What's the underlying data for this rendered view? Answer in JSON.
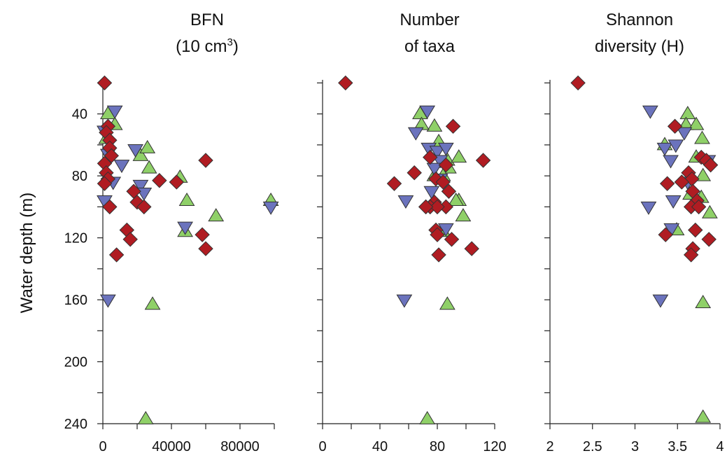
{
  "chart_data": {
    "type": "scatter",
    "ylabel": "Water depth (m)",
    "ylim": [
      18,
      240
    ],
    "y_inverted": true,
    "yticks": [
      40,
      80,
      120,
      160,
      200,
      240
    ],
    "yticks_minor": [
      20,
      60,
      100,
      140,
      180,
      220
    ],
    "series_styles": [
      {
        "marker": "diamond",
        "color": "#b01c22"
      },
      {
        "marker": "triangle-down",
        "color": "#6b73bd"
      },
      {
        "marker": "triangle-up",
        "color": "#8fd068"
      }
    ],
    "panels": [
      {
        "title_line1": "BFN",
        "title_line2_prefix": "(10 cm",
        "title_line2_sup": "3",
        "title_line2_suffix": ")",
        "xlim": [
          0,
          100000
        ],
        "xticks": [
          0,
          40000,
          80000
        ],
        "xtick_labels": [
          "0",
          "40000",
          "80000"
        ],
        "xticks_minor": [
          20000,
          60000,
          100000
        ],
        "series": [
          {
            "values": [
              [
                1000,
                20
              ],
              [
                3000,
                48
              ],
              [
                2000,
                52
              ],
              [
                4000,
                57
              ],
              [
                4000,
                62
              ],
              [
                5000,
                67
              ],
              [
                1000,
                72
              ],
              [
                2000,
                78
              ],
              [
                3000,
                82
              ],
              [
                1000,
                85
              ],
              [
                18000,
                90
              ],
              [
                20000,
                97
              ],
              [
                24000,
                100
              ],
              [
                14000,
                115
              ],
              [
                16000,
                121
              ],
              [
                8000,
                131
              ],
              [
                33000,
                83
              ],
              [
                43000,
                84
              ],
              [
                60000,
                70
              ],
              [
                58000,
                118
              ],
              [
                60000,
                127
              ],
              [
                4000,
                100
              ]
            ]
          },
          {
            "values": [
              [
                7000,
                38
              ],
              [
                1000,
                51
              ],
              [
                3000,
                66
              ],
              [
                11000,
                73
              ],
              [
                6000,
                84
              ],
              [
                1000,
                96
              ],
              [
                3000,
                160
              ],
              [
                19000,
                63
              ],
              [
                22000,
                86
              ],
              [
                24000,
                91
              ],
              [
                48000,
                113
              ],
              [
                98000,
                100
              ]
            ]
          },
          {
            "values": [
              [
                3000,
                40
              ],
              [
                7000,
                47
              ],
              [
                2000,
                56
              ],
              [
                22000,
                67
              ],
              [
                26000,
                62
              ],
              [
                27000,
                75
              ],
              [
                45000,
                81
              ],
              [
                49000,
                96
              ],
              [
                48000,
                116
              ],
              [
                66000,
                106
              ],
              [
                98000,
                96
              ],
              [
                29000,
                163
              ],
              [
                25000,
                237
              ]
            ]
          }
        ]
      },
      {
        "title_line1": "Number",
        "title_line2_prefix": "of taxa",
        "title_line2_sup": "",
        "title_line2_suffix": "",
        "xlim": [
          0,
          120
        ],
        "xticks": [
          0,
          40,
          80,
          120
        ],
        "xtick_labels": [
          "0",
          "40",
          "80",
          "120"
        ],
        "xticks_minor": [
          20,
          60,
          100
        ],
        "series": [
          {
            "values": [
              [
                16,
                20
              ],
              [
                91,
                48
              ],
              [
                75,
                68
              ],
              [
                112,
                70
              ],
              [
                86,
                73
              ],
              [
                64,
                78
              ],
              [
                79,
                82
              ],
              [
                50,
                85
              ],
              [
                84,
                84
              ],
              [
                88,
                90
              ],
              [
                86,
                100
              ],
              [
                78,
                97
              ],
              [
                75,
                100
              ],
              [
                80,
                100
              ],
              [
                79,
                115
              ],
              [
                80,
                118
              ],
              [
                90,
                121
              ],
              [
                81,
                131
              ],
              [
                104,
                127
              ],
              [
                72,
                100
              ]
            ]
          },
          {
            "values": [
              [
                73,
                38
              ],
              [
                65,
                52
              ],
              [
                74,
                62
              ],
              [
                80,
                64
              ],
              [
                86,
                62
              ],
              [
                82,
                70
              ],
              [
                78,
                75
              ],
              [
                82,
                82
              ],
              [
                76,
                90
              ],
              [
                58,
                96
              ],
              [
                86,
                114
              ],
              [
                57,
                160
              ]
            ]
          },
          {
            "values": [
              [
                68,
                40
              ],
              [
                78,
                48
              ],
              [
                69,
                47
              ],
              [
                81,
                58
              ],
              [
                87,
                70
              ],
              [
                95,
                68
              ],
              [
                88,
                75
              ],
              [
                78,
                80
              ],
              [
                84,
                80
              ],
              [
                95,
                96
              ],
              [
                93,
                96
              ],
              [
                98,
                106
              ],
              [
                84,
                116
              ],
              [
                87,
                163
              ],
              [
                73,
                237
              ]
            ]
          }
        ]
      },
      {
        "title_line1": "Shannon",
        "title_line2_prefix": "diversity (H)",
        "title_line2_sup": "",
        "title_line2_suffix": "",
        "xlim": [
          2,
          4
        ],
        "xticks": [
          2,
          2.5,
          3,
          3.5,
          4
        ],
        "xtick_labels": [
          "2",
          "2.5",
          "3",
          "3.5",
          "4"
        ],
        "xticks_minor": [],
        "series": [
          {
            "values": [
              [
                2.33,
                20
              ],
              [
                3.47,
                48
              ],
              [
                3.78,
                68
              ],
              [
                3.84,
                70
              ],
              [
                3.89,
                73
              ],
              [
                3.63,
                78
              ],
              [
                3.67,
                82
              ],
              [
                3.38,
                85
              ],
              [
                3.55,
                84
              ],
              [
                3.68,
                90
              ],
              [
                3.73,
                96
              ],
              [
                3.66,
                100
              ],
              [
                3.75,
                100
              ],
              [
                3.71,
                115
              ],
              [
                3.36,
                118
              ],
              [
                3.87,
                121
              ],
              [
                3.68,
                127
              ],
              [
                3.66,
                131
              ]
            ]
          },
          {
            "values": [
              [
                3.18,
                38
              ],
              [
                3.58,
                52
              ],
              [
                3.35,
                62
              ],
              [
                3.48,
                60
              ],
              [
                3.86,
                70
              ],
              [
                3.42,
                70
              ],
              [
                3.62,
                84
              ],
              [
                3.16,
                100
              ],
              [
                3.45,
                96
              ],
              [
                3.43,
                114
              ],
              [
                3.3,
                160
              ]
            ]
          },
          {
            "values": [
              [
                3.62,
                40
              ],
              [
                3.6,
                47
              ],
              [
                3.72,
                47
              ],
              [
                3.79,
                56
              ],
              [
                3.35,
                60
              ],
              [
                3.72,
                68
              ],
              [
                3.8,
                80
              ],
              [
                3.65,
                92
              ],
              [
                3.78,
                94
              ],
              [
                3.88,
                104
              ],
              [
                3.49,
                115
              ],
              [
                3.8,
                162
              ],
              [
                3.8,
                236
              ]
            ]
          }
        ]
      }
    ]
  }
}
